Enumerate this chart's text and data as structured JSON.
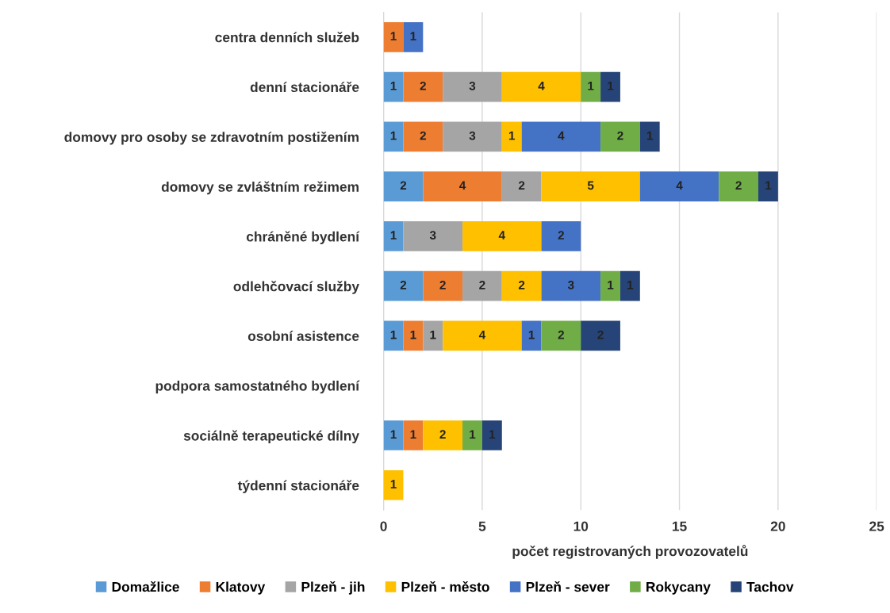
{
  "chart_data": {
    "type": "bar",
    "orientation": "horizontal",
    "stacked": true,
    "xlabel": "počet registrovaných provozovatelů",
    "categories": [
      "centra denních služeb",
      "denní stacionáře",
      "domovy pro osoby se zdravotním postižením",
      "domovy se zvláštním režimem",
      "chráněné bydlení",
      "odlehčovací služby",
      "osobní asistence",
      "podpora samostatného bydlení",
      "sociálně terapeutické dílny",
      "týdenní stacionáře"
    ],
    "series": [
      {
        "name": "Domažlice",
        "color": "#5b9bd5",
        "values": [
          null,
          1,
          1,
          2,
          1,
          2,
          1,
          null,
          1,
          null
        ]
      },
      {
        "name": "Klatovy",
        "color": "#ed7d31",
        "values": [
          1,
          2,
          2,
          4,
          null,
          2,
          1,
          null,
          1,
          null
        ]
      },
      {
        "name": "Plzeň - jih",
        "color": "#a5a5a5",
        "values": [
          null,
          3,
          3,
          2,
          3,
          2,
          1,
          null,
          null,
          null
        ]
      },
      {
        "name": "Plzeň - město",
        "color": "#ffc000",
        "values": [
          null,
          4,
          1,
          5,
          4,
          2,
          4,
          null,
          2,
          1
        ]
      },
      {
        "name": "Plzeň - sever",
        "color": "#4472c4",
        "values": [
          1,
          null,
          4,
          4,
          2,
          3,
          1,
          null,
          null,
          null
        ]
      },
      {
        "name": "Rokycany",
        "color": "#70ad47",
        "values": [
          null,
          1,
          2,
          2,
          null,
          1,
          2,
          null,
          1,
          null
        ]
      },
      {
        "name": "Tachov",
        "color": "#264478",
        "values": [
          null,
          1,
          1,
          1,
          null,
          1,
          2,
          null,
          1,
          null
        ]
      }
    ],
    "xlim": [
      0,
      25
    ],
    "xticks": [
      0,
      5,
      10,
      15,
      20,
      25
    ],
    "grid": "x",
    "legend": "bottom",
    "data_labels": true
  }
}
